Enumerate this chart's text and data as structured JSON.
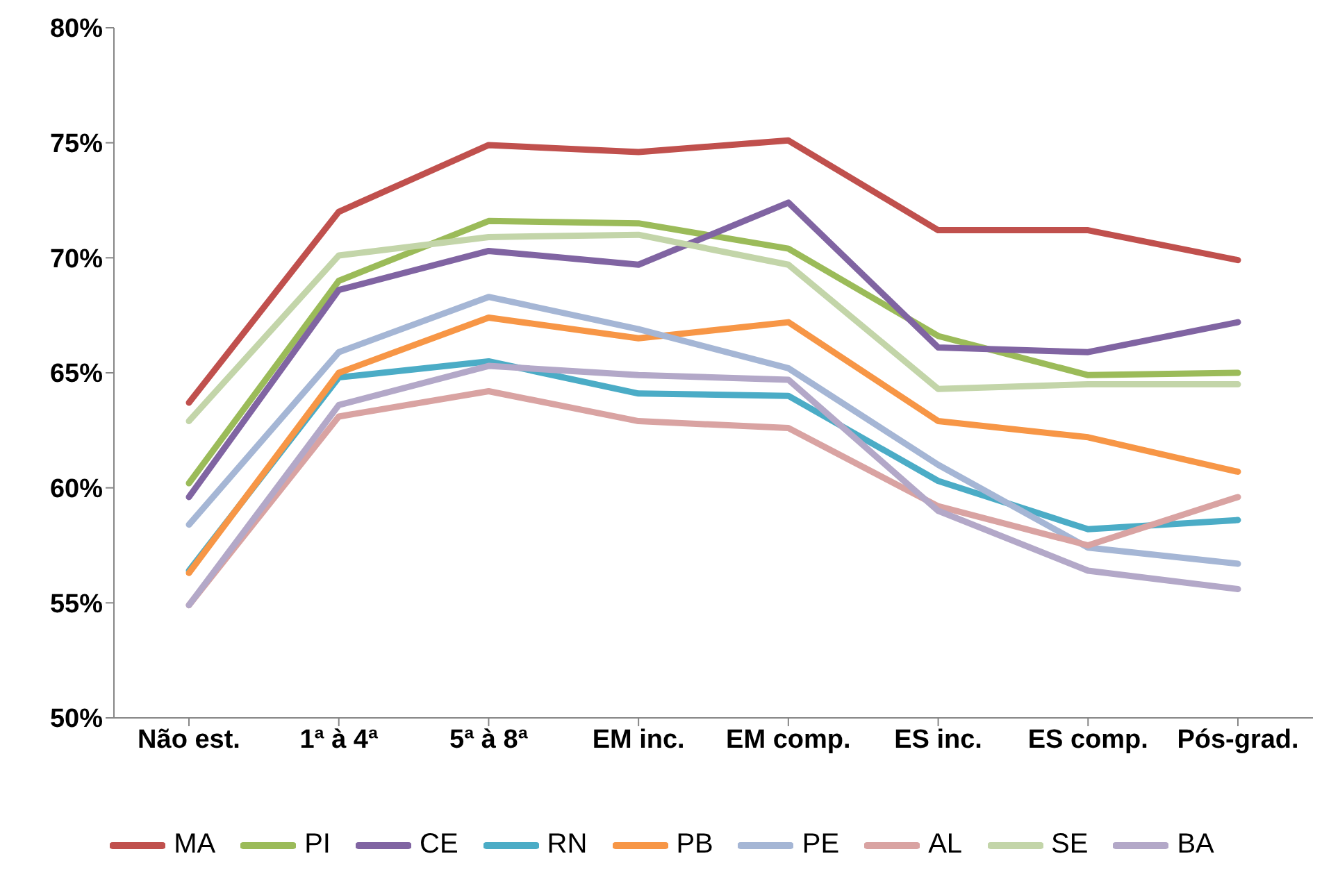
{
  "chart_data": {
    "type": "line",
    "categories": [
      "Não est.",
      "1ª à 4ª",
      "5ª à 8ª",
      "EM inc.",
      "EM comp.",
      "ES inc.",
      "ES comp.",
      "Pós-grad."
    ],
    "series": [
      {
        "name": "MA",
        "color": "#c0504d",
        "values": [
          63.7,
          72.0,
          74.9,
          74.6,
          75.1,
          71.2,
          71.2,
          69.9
        ]
      },
      {
        "name": "PI",
        "color": "#9bbb59",
        "values": [
          60.2,
          69.0,
          71.6,
          71.5,
          70.4,
          66.6,
          64.9,
          65.0
        ]
      },
      {
        "name": "CE",
        "color": "#8064a2",
        "values": [
          59.6,
          68.6,
          70.3,
          69.7,
          72.4,
          66.1,
          65.9,
          67.2
        ]
      },
      {
        "name": "RN",
        "color": "#4bacc6",
        "values": [
          56.4,
          64.8,
          65.5,
          64.1,
          64.0,
          60.3,
          58.2,
          58.6
        ]
      },
      {
        "name": "PB",
        "color": "#f79646",
        "values": [
          56.3,
          65.0,
          67.4,
          66.5,
          67.2,
          62.9,
          62.2,
          60.7
        ]
      },
      {
        "name": "PE",
        "color": "#a5b6d5",
        "values": [
          58.4,
          65.9,
          68.3,
          66.9,
          65.2,
          61.0,
          57.4,
          56.7
        ]
      },
      {
        "name": "AL",
        "color": "#d9a3a2",
        "values": [
          54.9,
          63.1,
          64.2,
          62.9,
          62.6,
          59.2,
          57.5,
          59.6
        ]
      },
      {
        "name": "SE",
        "color": "#c3d5a9",
        "values": [
          62.9,
          70.1,
          70.9,
          71.0,
          69.7,
          64.3,
          64.5,
          64.5
        ]
      },
      {
        "name": "BA",
        "color": "#b3a8c8",
        "values": [
          54.9,
          63.6,
          65.3,
          64.9,
          64.7,
          59.0,
          56.4,
          55.6
        ]
      }
    ],
    "ylim": [
      50,
      80
    ],
    "yticks": [
      {
        "value": 50,
        "label": "50%"
      },
      {
        "value": 55,
        "label": "55%"
      },
      {
        "value": 60,
        "label": "60%"
      },
      {
        "value": 65,
        "label": "65%"
      },
      {
        "value": 70,
        "label": "70%"
      },
      {
        "value": 75,
        "label": "75%"
      },
      {
        "value": 80,
        "label": "80%"
      }
    ],
    "grid": false,
    "legend": "bottom",
    "marker": "none",
    "line_style": "solid"
  }
}
